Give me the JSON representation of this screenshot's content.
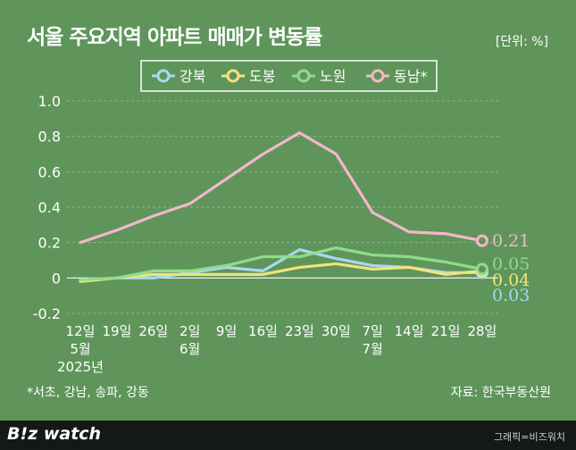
{
  "header": {
    "title": "서울 주요지역 아파트 매매가 변동률",
    "unit": "[단위: %]"
  },
  "chart_data": {
    "type": "line",
    "title": "서울 주요지역 아파트 매매가 변동률",
    "unit": "[단위: %]",
    "ylim": [
      -0.2,
      1.0
    ],
    "yticks": [
      "1.0",
      "0.8",
      "0.6",
      "0.4",
      "0.2",
      "0",
      "-0.2"
    ],
    "grid": true,
    "legend_position": "top-center",
    "categories": [
      "12일 5월 2025년",
      "19일",
      "26일",
      "2일 6월",
      "9일",
      "16일",
      "23일",
      "30일",
      "7일 7월",
      "14일",
      "21일",
      "28일"
    ],
    "x_labels": [
      [
        "12일",
        "5월",
        "2025년"
      ],
      [
        "19일"
      ],
      [
        "26일"
      ],
      [
        "2일",
        "6월"
      ],
      [
        "9일"
      ],
      [
        "16일"
      ],
      [
        "23일"
      ],
      [
        "30일"
      ],
      [
        "7일",
        "7월"
      ],
      [
        "14일"
      ],
      [
        "21일"
      ],
      [
        "28일"
      ]
    ],
    "series": [
      {
        "name": "강북",
        "color": "#a8d8f0",
        "values": [
          -0.01,
          0.0,
          0.0,
          0.03,
          0.06,
          0.04,
          0.16,
          0.11,
          0.07,
          0.06,
          0.03,
          0.03
        ],
        "end_label": "0.03"
      },
      {
        "name": "도봉",
        "color": "#f3e27a",
        "values": [
          -0.02,
          0.0,
          0.02,
          0.02,
          0.02,
          0.02,
          0.06,
          0.08,
          0.05,
          0.06,
          0.02,
          0.04
        ],
        "end_label": "0.04"
      },
      {
        "name": "노원",
        "color": "#8fdc8b",
        "values": [
          -0.01,
          0.0,
          0.04,
          0.04,
          0.07,
          0.12,
          0.12,
          0.17,
          0.13,
          0.12,
          0.09,
          0.05
        ],
        "end_label": "0.05"
      },
      {
        "name": "동남*",
        "color": "#f2b8c8",
        "values": [
          0.2,
          0.27,
          0.35,
          0.42,
          0.56,
          0.7,
          0.82,
          0.7,
          0.37,
          0.26,
          0.25,
          0.21
        ],
        "end_label": "0.21"
      }
    ]
  },
  "footer": {
    "footnote": "*서초, 강남, 송파, 강동",
    "source": "자료: 한국부동산원",
    "logo": "B!z watch",
    "credit": "그래픽=비즈워치"
  }
}
